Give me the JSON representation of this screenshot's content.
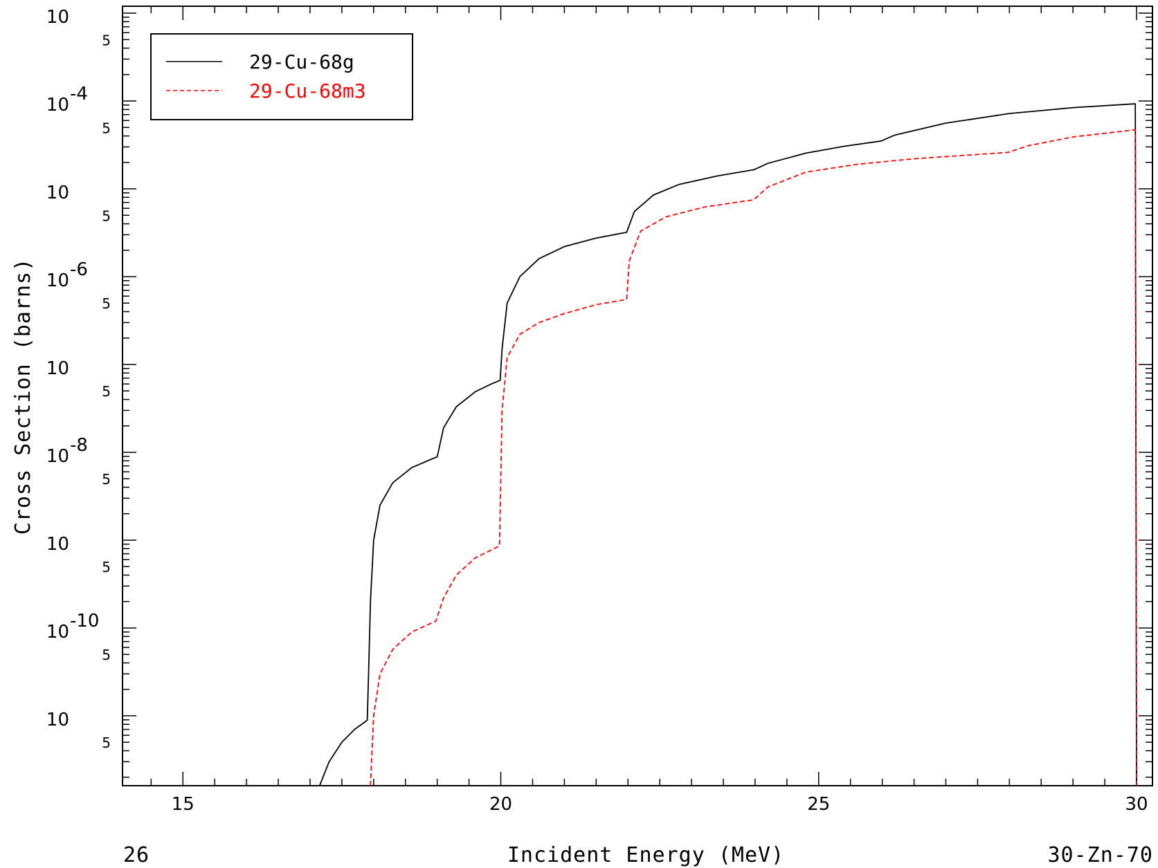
{
  "chart_data": {
    "type": "line",
    "title": "",
    "xlabel": "Incident Energy (MeV)",
    "ylabel": "Cross Section (barns)",
    "xscale": "linear",
    "yscale": "log",
    "xlim": [
      14.05,
      30.25
    ],
    "ylim": [
      1.6e-12,
      0.0012
    ],
    "xticks": [
      15,
      20,
      25,
      30
    ],
    "x_tick_labels": [
      "15",
      "20",
      "25",
      "30"
    ],
    "y_decades": [
      {
        "exp": -11,
        "base": "10",
        "exponent": ""
      },
      {
        "exp": -10,
        "base": "10",
        "exponent": "-10"
      },
      {
        "exp": -9,
        "base": "10",
        "exponent": ""
      },
      {
        "exp": -8,
        "base": "10",
        "exponent": "-8"
      },
      {
        "exp": -7,
        "base": "10",
        "exponent": ""
      },
      {
        "exp": -6,
        "base": "10",
        "exponent": "-6"
      },
      {
        "exp": -5,
        "base": "10",
        "exponent": ""
      },
      {
        "exp": -4,
        "base": "10",
        "exponent": "-4"
      },
      {
        "exp": -3,
        "base": "10",
        "exponent": ""
      }
    ],
    "five_label": "5",
    "footer_left": "26",
    "footer_right": "30-Zn-70",
    "grid": false,
    "legend_position": "top-left",
    "series": [
      {
        "name": "29-Cu-68g",
        "color": "#000000",
        "dash": "solid",
        "points": [
          [
            17.15,
            1.6e-12
          ],
          [
            17.3,
            3e-12
          ],
          [
            17.5,
            5e-12
          ],
          [
            17.7,
            7e-12
          ],
          [
            17.9,
            8.9e-12
          ],
          [
            17.92,
            3e-11
          ],
          [
            17.95,
            2e-10
          ],
          [
            18.0,
            1e-09
          ],
          [
            18.1,
            2.5e-09
          ],
          [
            18.3,
            4.5e-09
          ],
          [
            18.6,
            6.7e-09
          ],
          [
            18.9,
            8.3e-09
          ],
          [
            19.0,
            8.9e-09
          ],
          [
            19.1,
            1.9e-08
          ],
          [
            19.3,
            3.3e-08
          ],
          [
            19.6,
            4.9e-08
          ],
          [
            19.85,
            6e-08
          ],
          [
            19.99,
            6.6e-08
          ],
          [
            20.02,
            1.5e-07
          ],
          [
            20.1,
            5e-07
          ],
          [
            20.3,
            1e-06
          ],
          [
            20.6,
            1.6e-06
          ],
          [
            21.0,
            2.2e-06
          ],
          [
            21.5,
            2.75e-06
          ],
          [
            21.98,
            3.2e-06
          ],
          [
            22.1,
            5.5e-06
          ],
          [
            22.4,
            8.5e-06
          ],
          [
            22.8,
            1.12e-05
          ],
          [
            23.4,
            1.4e-05
          ],
          [
            23.98,
            1.65e-05
          ],
          [
            24.2,
            1.95e-05
          ],
          [
            24.8,
            2.55e-05
          ],
          [
            25.4,
            3.05e-05
          ],
          [
            25.98,
            3.5e-05
          ],
          [
            26.2,
            4.1e-05
          ],
          [
            27.0,
            5.6e-05
          ],
          [
            28.0,
            7.2e-05
          ],
          [
            29.0,
            8.4e-05
          ],
          [
            29.98,
            9.3e-05
          ],
          [
            30.0,
            1.6e-12
          ]
        ]
      },
      {
        "name": "29-Cu-68m3",
        "color": "#ff0000",
        "dash": "dashed",
        "points": [
          [
            17.95,
            1.6e-12
          ],
          [
            18.0,
            1e-11
          ],
          [
            18.1,
            3e-11
          ],
          [
            18.3,
            5.7e-11
          ],
          [
            18.6,
            9e-11
          ],
          [
            18.98,
            1.2e-10
          ],
          [
            19.1,
            2.2e-10
          ],
          [
            19.3,
            4e-10
          ],
          [
            19.6,
            6.3e-10
          ],
          [
            19.98,
            8.6e-10
          ],
          [
            20.02,
            3e-08
          ],
          [
            20.1,
            1.2e-07
          ],
          [
            20.3,
            2.2e-07
          ],
          [
            20.6,
            3e-07
          ],
          [
            21.0,
            3.8e-07
          ],
          [
            21.5,
            4.8e-07
          ],
          [
            21.98,
            5.5e-07
          ],
          [
            22.02,
            1.5e-06
          ],
          [
            22.2,
            3.3e-06
          ],
          [
            22.6,
            4.8e-06
          ],
          [
            23.2,
            6.2e-06
          ],
          [
            23.98,
            7.5e-06
          ],
          [
            24.2,
            1.05e-05
          ],
          [
            24.8,
            1.55e-05
          ],
          [
            25.6,
            1.9e-05
          ],
          [
            26.5,
            2.2e-05
          ],
          [
            27.98,
            2.6e-05
          ],
          [
            28.3,
            3.1e-05
          ],
          [
            29.0,
            3.9e-05
          ],
          [
            29.98,
            4.7e-05
          ],
          [
            30.0,
            1.6e-12
          ]
        ]
      }
    ]
  }
}
